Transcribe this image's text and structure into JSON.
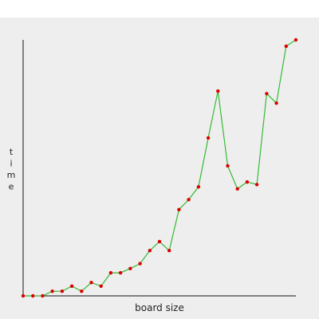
{
  "chart_data": {
    "type": "line",
    "title": "",
    "xlabel": "board size",
    "ylabel": "time",
    "x": [
      1,
      2,
      3,
      4,
      5,
      6,
      7,
      8,
      9,
      10,
      11,
      12,
      13,
      14,
      15,
      16,
      17,
      18,
      19,
      20,
      21,
      22,
      23,
      24,
      25,
      26,
      27,
      28,
      29
    ],
    "series": [
      {
        "values": [
          0.0,
          0.0,
          0.0,
          0.018,
          0.018,
          0.038,
          0.018,
          0.052,
          0.038,
          0.09,
          0.09,
          0.107,
          0.126,
          0.177,
          0.212,
          0.177,
          0.337,
          0.376,
          0.426,
          0.617,
          0.8,
          0.508,
          0.418,
          0.445,
          0.435,
          0.79,
          0.753,
          0.975,
          1.0
        ]
      }
    ],
    "xlim": [
      1,
      29
    ],
    "ylim": [
      0,
      1.0
    ],
    "grid": false,
    "legend": "none",
    "colors": {
      "line": "#33bb33",
      "marker": "#dd0000",
      "axis": "#111111",
      "background": "#eeeeee"
    }
  }
}
